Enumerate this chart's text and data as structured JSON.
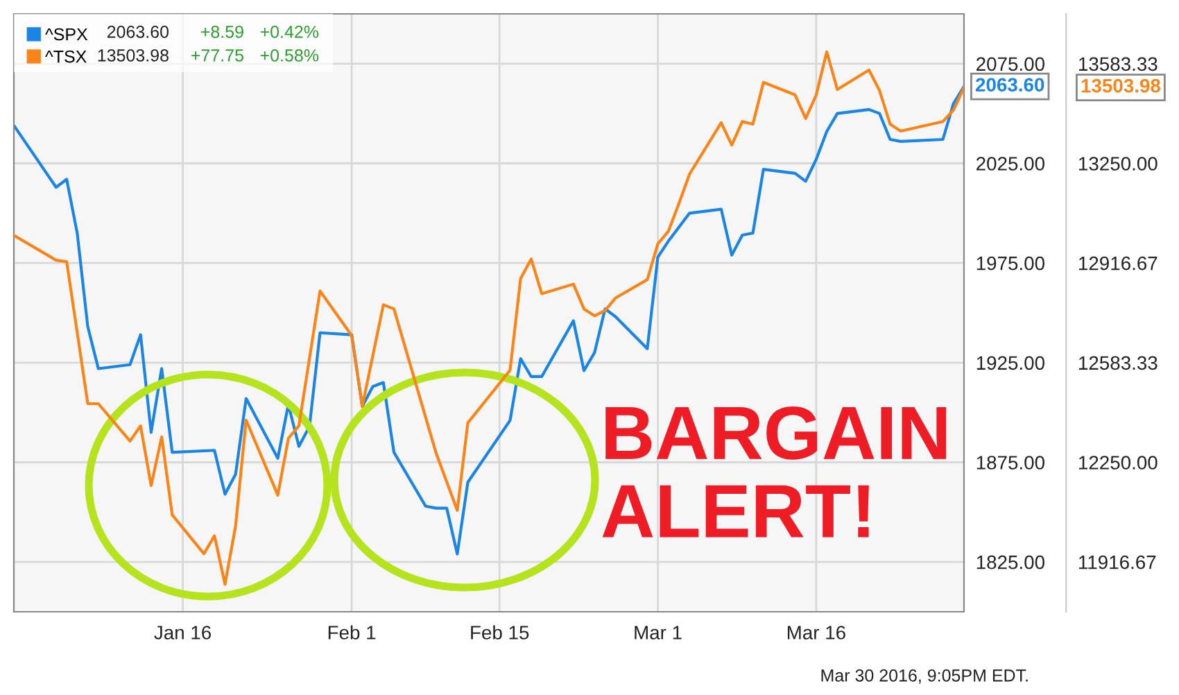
{
  "chart_data": {
    "type": "line",
    "xlim": [
      "2015-12-31",
      "2016-03-30"
    ],
    "xticks": [
      {
        "value": "2016-01-16",
        "label": "Jan 16"
      },
      {
        "value": "2016-02-01",
        "label": "Feb 1"
      },
      {
        "value": "2016-02-15",
        "label": "Feb 15"
      },
      {
        "value": "2016-03-01",
        "label": "Mar 1"
      },
      {
        "value": "2016-03-16",
        "label": "Mar 16"
      }
    ],
    "ylim": [
      1800,
      2100
    ],
    "yticks": [
      {
        "value": 1825,
        "label": "1825.00"
      },
      {
        "value": 1875,
        "label": "1875.00"
      },
      {
        "value": 1925,
        "label": "1925.00"
      },
      {
        "value": 1975,
        "label": "1975.00"
      },
      {
        "value": 2025,
        "label": "2025.00"
      },
      {
        "value": 2075,
        "label": "2075.00"
      }
    ],
    "y2lim": [
      11750,
      13750
    ],
    "y2ticks": [
      11916.67,
      {
        "value": 12250,
        "label": "12250.00"
      },
      12583.33,
      12916.67,
      {
        "value": 13250,
        "label": "13250.00"
      },
      13583.33
    ],
    "grid": true,
    "legend": "top left",
    "series": [
      {
        "name": "^SPX",
        "color": "#1a85e4",
        "x": [
          "2015-12-31",
          "2016-01-04",
          "2016-01-05",
          "2016-01-06",
          "2016-01-07",
          "2016-01-08",
          "2016-01-11",
          "2016-01-12",
          "2016-01-13",
          "2016-01-14",
          "2016-01-15",
          "2016-01-19",
          "2016-01-20",
          "2016-01-21",
          "2016-01-22",
          "2016-01-25",
          "2016-01-26",
          "2016-01-27",
          "2016-01-28",
          "2016-01-29",
          "2016-02-01",
          "2016-02-02",
          "2016-02-03",
          "2016-02-04",
          "2016-02-05",
          "2016-02-08",
          "2016-02-09",
          "2016-02-10",
          "2016-02-11",
          "2016-02-12",
          "2016-02-16",
          "2016-02-17",
          "2016-02-18",
          "2016-02-19",
          "2016-02-22",
          "2016-02-23",
          "2016-02-24",
          "2016-02-25",
          "2016-02-26",
          "2016-02-29",
          "2016-03-01",
          "2016-03-02",
          "2016-03-03",
          "2016-03-04",
          "2016-03-07",
          "2016-03-08",
          "2016-03-09",
          "2016-03-10",
          "2016-03-11",
          "2016-03-14",
          "2016-03-15",
          "2016-03-16",
          "2016-03-17",
          "2016-03-18",
          "2016-03-21",
          "2016-03-22",
          "2016-03-23",
          "2016-03-24",
          "2016-03-28",
          "2016-03-29",
          "2016-03-30"
        ],
        "values": [
          2044,
          2013,
          2017,
          1990,
          1943,
          1922,
          1924,
          1939,
          1890,
          1922,
          1880,
          1881,
          1859,
          1869,
          1907,
          1877,
          1904,
          1883,
          1893,
          1940,
          1939,
          1903,
          1913,
          1915,
          1880,
          1853,
          1852,
          1852,
          1829,
          1865,
          1896,
          1927,
          1918,
          1918,
          1946,
          1921,
          1930,
          1952,
          1948,
          1932,
          1978,
          1986,
          1993,
          2000,
          2002,
          1979,
          1989,
          1990,
          2022,
          2020,
          2016,
          2027,
          2041,
          2050,
          2052,
          2050,
          2037,
          2036,
          2037,
          2055,
          2063.6
        ]
      },
      {
        "name": "^TSX",
        "color": "#fb8419",
        "axis": "y2",
        "x": [
          "2015-12-31",
          "2016-01-04",
          "2016-01-05",
          "2016-01-06",
          "2016-01-07",
          "2016-01-08",
          "2016-01-11",
          "2016-01-12",
          "2016-01-13",
          "2016-01-14",
          "2016-01-15",
          "2016-01-18",
          "2016-01-19",
          "2016-01-20",
          "2016-01-21",
          "2016-01-22",
          "2016-01-25",
          "2016-01-26",
          "2016-01-27",
          "2016-01-29",
          "2016-02-01",
          "2016-02-02",
          "2016-02-04",
          "2016-02-05",
          "2016-02-09",
          "2016-02-11",
          "2016-02-12",
          "2016-02-16",
          "2016-02-17",
          "2016-02-18",
          "2016-02-19",
          "2016-02-22",
          "2016-02-23",
          "2016-02-24",
          "2016-02-25",
          "2016-02-26",
          "2016-02-29",
          "2016-03-01",
          "2016-03-02",
          "2016-03-03",
          "2016-03-04",
          "2016-03-07",
          "2016-03-08",
          "2016-03-09",
          "2016-03-10",
          "2016-03-11",
          "2016-03-14",
          "2016-03-15",
          "2016-03-16",
          "2016-03-17",
          "2016-03-18",
          "2016-03-21",
          "2016-03-22",
          "2016-03-23",
          "2016-03-24",
          "2016-03-28",
          "2016-03-29",
          "2016-03-30"
        ],
        "values": [
          13009,
          12926,
          12921,
          12684,
          12446,
          12446,
          12321,
          12372,
          12172,
          12335,
          12074,
          11944,
          12004,
          11842,
          12037,
          12391,
          12140,
          12330,
          12372,
          12823,
          12674,
          12437,
          12777,
          12763,
          12280,
          12089,
          12382,
          12558,
          12865,
          12930,
          12814,
          12846,
          12763,
          12740,
          12758,
          12800,
          12861,
          12981,
          13023,
          13116,
          13214,
          13386,
          13311,
          13390,
          13381,
          13521,
          13479,
          13400,
          13479,
          13623,
          13497,
          13562,
          13493,
          13381,
          13358,
          13390,
          13428,
          13503.98
        ]
      }
    ],
    "annotations": [
      "2063.60",
      "+8.59",
      "+0.42%",
      "13503.98",
      "+77.75",
      "+0.58%",
      "BARGAIN\nALERT!",
      "Mar 30 2016, 9:05PM EDT.",
      "13503.98",
      {
        "text": "2063.60",
        "x": "2016-03-30",
        "y": 2063.6
      }
    ]
  }
}
